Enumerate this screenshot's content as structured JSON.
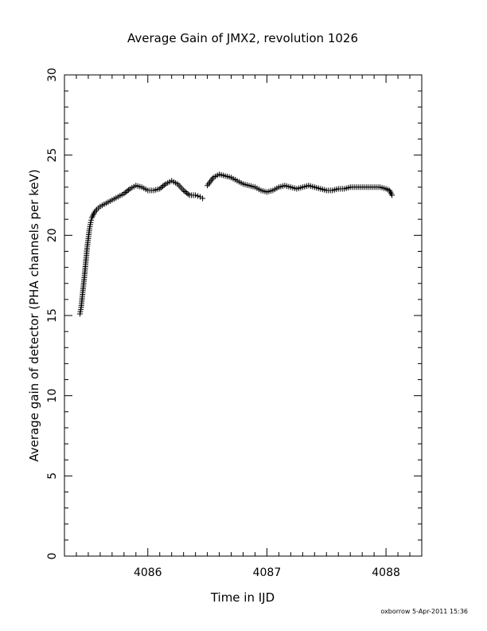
{
  "chart_data": {
    "type": "scatter",
    "title": "Average Gain of JMX2, revolution 1026",
    "xlabel": "Time in IJD",
    "ylabel": "Average gain of detector (PHA channels per keV)",
    "xlim": [
      4085.3,
      4088.3
    ],
    "ylim": [
      0,
      30
    ],
    "x_ticks": [
      4086,
      4087,
      4088
    ],
    "y_ticks": [
      0,
      5,
      10,
      15,
      20,
      25,
      30
    ],
    "marker": "plus",
    "grid": false,
    "series": [
      {
        "points": [
          [
            4085.43,
            15.1
          ],
          [
            4085.44,
            15.5
          ],
          [
            4085.45,
            16.2
          ],
          [
            4085.46,
            16.9
          ],
          [
            4085.47,
            17.6
          ],
          [
            4085.48,
            18.4
          ],
          [
            4085.49,
            19.2
          ],
          [
            4085.5,
            19.8
          ],
          [
            4085.51,
            20.4
          ],
          [
            4085.52,
            20.8
          ],
          [
            4085.53,
            21.1
          ],
          [
            4085.55,
            21.4
          ],
          [
            4085.57,
            21.6
          ],
          [
            4085.6,
            21.8
          ],
          [
            4085.65,
            22.0
          ],
          [
            4085.7,
            22.2
          ],
          [
            4085.75,
            22.4
          ],
          [
            4085.8,
            22.6
          ],
          [
            4085.85,
            22.9
          ],
          [
            4085.9,
            23.1
          ],
          [
            4085.95,
            23.0
          ],
          [
            4086.0,
            22.8
          ],
          [
            4086.05,
            22.8
          ],
          [
            4086.1,
            22.9
          ],
          [
            4086.15,
            23.2
          ],
          [
            4086.2,
            23.4
          ],
          [
            4086.25,
            23.2
          ],
          [
            4086.3,
            22.8
          ],
          [
            4086.35,
            22.5
          ],
          [
            4086.4,
            22.5
          ],
          [
            4086.44,
            22.4
          ],
          [
            4086.46,
            22.3
          ],
          [
            4086.5,
            23.1
          ],
          [
            4086.55,
            23.6
          ],
          [
            4086.6,
            23.8
          ],
          [
            4086.65,
            23.7
          ],
          [
            4086.7,
            23.6
          ],
          [
            4086.75,
            23.4
          ],
          [
            4086.8,
            23.2
          ],
          [
            4086.85,
            23.1
          ],
          [
            4086.9,
            23.0
          ],
          [
            4086.95,
            22.8
          ],
          [
            4087.0,
            22.7
          ],
          [
            4087.05,
            22.8
          ],
          [
            4087.1,
            23.0
          ],
          [
            4087.15,
            23.1
          ],
          [
            4087.2,
            23.0
          ],
          [
            4087.25,
            22.9
          ],
          [
            4087.3,
            23.0
          ],
          [
            4087.35,
            23.1
          ],
          [
            4087.4,
            23.0
          ],
          [
            4087.45,
            22.9
          ],
          [
            4087.5,
            22.8
          ],
          [
            4087.55,
            22.8
          ],
          [
            4087.6,
            22.9
          ],
          [
            4087.65,
            22.9
          ],
          [
            4087.7,
            23.0
          ],
          [
            4087.75,
            23.0
          ],
          [
            4087.8,
            23.0
          ],
          [
            4087.85,
            23.0
          ],
          [
            4087.9,
            23.0
          ],
          [
            4087.95,
            23.0
          ],
          [
            4088.0,
            22.9
          ],
          [
            4088.03,
            22.8
          ],
          [
            4088.05,
            22.5
          ]
        ]
      }
    ]
  },
  "footer": {
    "text": "oxborrow  5-Apr-2011 15:36"
  }
}
